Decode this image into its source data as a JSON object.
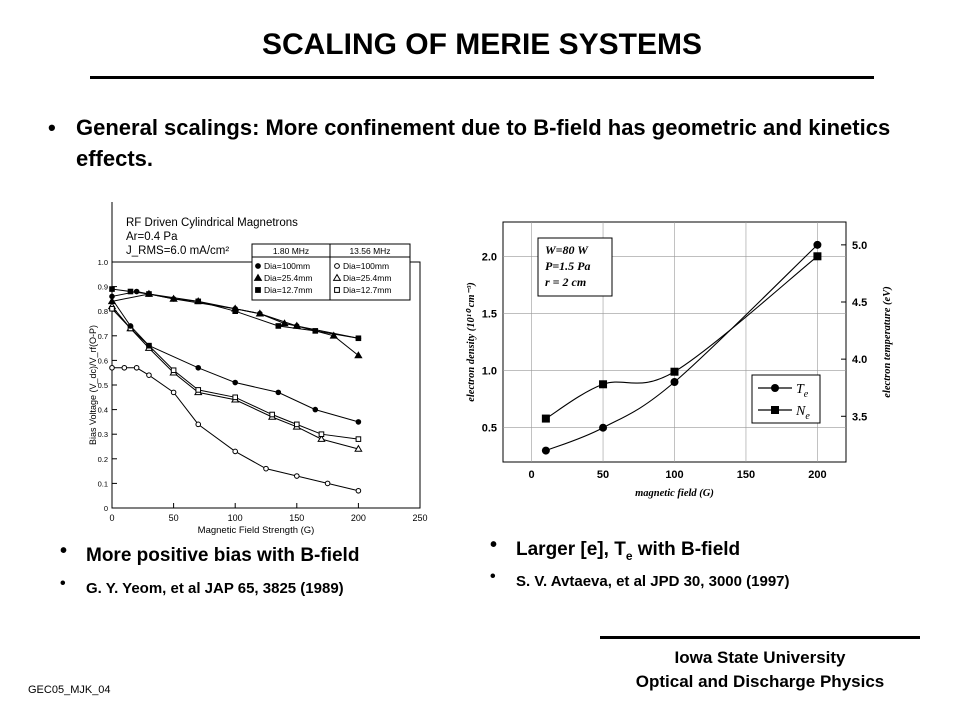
{
  "slide": {
    "title": "SCALING OF MERIE SYSTEMS",
    "bullet": "General scalings: More confinement due to B-field has geometric and kinetics effects.",
    "left_caption_1": "More positive bias with B-field",
    "left_caption_2": "G. Y. Yeom, et al JAP 65, 3825 (1989)",
    "right_caption_1_main": "Larger [e], T",
    "right_caption_1_sub": "e",
    "right_caption_1_end": " with B-field",
    "right_caption_2": "S. V. Avtaeva, et al JPD 30, 3000 (1997)",
    "footer_line1": "Iowa State University",
    "footer_line2": "Optical and Discharge Physics",
    "tag": "GEC05_MJK_04",
    "bullet_symbol": "•"
  },
  "chart_data": [
    {
      "type": "line",
      "title_lines": [
        "RF Driven Cylindrical Magnetrons",
        "Ar=0.4 Pa",
        "J_RMS=6.0 mA/cm²"
      ],
      "xlabel": "Magnetic Field Strength  (G)",
      "ylabel": "Bias Voltage (V_dc)/V_rf(O-P)",
      "xlim": [
        0,
        250
      ],
      "ylim": [
        0,
        1.0
      ],
      "xticks": [
        0,
        50,
        100,
        150,
        200,
        250
      ],
      "yticks": [
        0,
        0.1,
        0.2,
        0.3,
        0.4,
        0.5,
        0.6,
        0.7,
        0.8,
        0.9,
        1.0
      ],
      "ytick_labels": [
        "0",
        "0.1",
        "0.2",
        "0.3",
        "0.4",
        "0.5",
        "0.6",
        "0.7",
        "0.8",
        "0.9",
        "1.0"
      ],
      "legend_headers": [
        "1.80 MHz",
        "13.56 MHz"
      ],
      "series": [
        {
          "name": "Dia=100mm",
          "freq": "1.80 MHz",
          "marker": "circle-filled",
          "x": [
            0,
            20,
            30,
            50,
            100,
            120,
            150,
            200
          ],
          "y": [
            0.86,
            0.88,
            0.87,
            0.85,
            0.81,
            0.79,
            0.74,
            0.69
          ]
        },
        {
          "name": "Dia=25.4mm",
          "freq": "1.80 MHz",
          "marker": "triangle-filled",
          "x": [
            0,
            30,
            50,
            70,
            100,
            120,
            140,
            150,
            180,
            200
          ],
          "y": [
            0.84,
            0.87,
            0.85,
            0.84,
            0.81,
            0.79,
            0.75,
            0.74,
            0.7,
            0.62
          ]
        },
        {
          "name": "Dia=12.7mm",
          "freq": "1.80 MHz",
          "marker": "square-filled",
          "x": [
            0,
            15,
            30,
            70,
            100,
            135,
            165,
            200
          ],
          "y": [
            0.89,
            0.88,
            0.87,
            0.84,
            0.8,
            0.74,
            0.72,
            0.69
          ]
        },
        {
          "name": "Dia=100mm",
          "freq": "13.56 MHz",
          "marker": "circle-open",
          "x": [
            0,
            10,
            20,
            30,
            50,
            70,
            100,
            125,
            150,
            175,
            200
          ],
          "y": [
            0.57,
            0.57,
            0.57,
            0.54,
            0.47,
            0.34,
            0.23,
            0.16,
            0.13,
            0.1,
            0.07
          ]
        },
        {
          "name": "Dia=25.4mm",
          "freq": "13.56 MHz",
          "marker": "triangle-open",
          "x": [
            0,
            15,
            30,
            50,
            70,
            100,
            130,
            150,
            170,
            200
          ],
          "y": [
            0.82,
            0.73,
            0.65,
            0.55,
            0.47,
            0.44,
            0.37,
            0.33,
            0.28,
            0.24
          ]
        },
        {
          "name": "Dia=12.7mm",
          "freq": "13.56 MHz",
          "marker": "square-open",
          "x": [
            0,
            15,
            30,
            50,
            70,
            100,
            130,
            150,
            170,
            200
          ],
          "y": [
            0.81,
            0.73,
            0.66,
            0.56,
            0.48,
            0.45,
            0.38,
            0.34,
            0.3,
            0.28
          ]
        },
        {
          "name": "Dia=100mm (1.80 MHz lower)",
          "freq": "1.80 MHz",
          "marker": "circle-filled",
          "x": [
            0,
            15,
            30,
            70,
            100,
            135,
            165,
            200
          ],
          "y": [
            0.85,
            0.74,
            0.66,
            0.57,
            0.51,
            0.47,
            0.4,
            0.35
          ]
        }
      ]
    },
    {
      "type": "line",
      "legend_params": [
        "W=80 W",
        "P=1.5 Pa",
        "r = 2 cm"
      ],
      "xlabel": "magnetic field (G)",
      "ylabel_left": "electron density (10¹⁰ cm⁻³)",
      "ylabel_right": "electron temperature (eV)",
      "xlim": [
        -20,
        220
      ],
      "ylim_left": [
        0.2,
        2.3
      ],
      "ylim_right": [
        3.1,
        5.2
      ],
      "xticks": [
        0,
        50,
        100,
        150,
        200
      ],
      "yticks_left": [
        0.5,
        1.0,
        1.5,
        2.0
      ],
      "ytick_labels_left": [
        "0.5",
        "1.0",
        "1.5",
        "2.0"
      ],
      "yticks_right": [
        3.5,
        4.0,
        4.5,
        5.0
      ],
      "ytick_labels_right": [
        "3.5",
        "4.0",
        "4.5",
        "5.0"
      ],
      "series": [
        {
          "name": "T",
          "name_sub": "e",
          "marker": "circle",
          "axis": "right",
          "x": [
            10,
            50,
            100,
            200
          ],
          "y": [
            3.2,
            3.4,
            3.8,
            5.0
          ]
        },
        {
          "name": "N",
          "name_sub": "e",
          "marker": "square",
          "axis": "left",
          "x": [
            10,
            50,
            100,
            200
          ],
          "y": [
            0.58,
            0.88,
            0.99,
            2.0
          ]
        }
      ]
    }
  ]
}
